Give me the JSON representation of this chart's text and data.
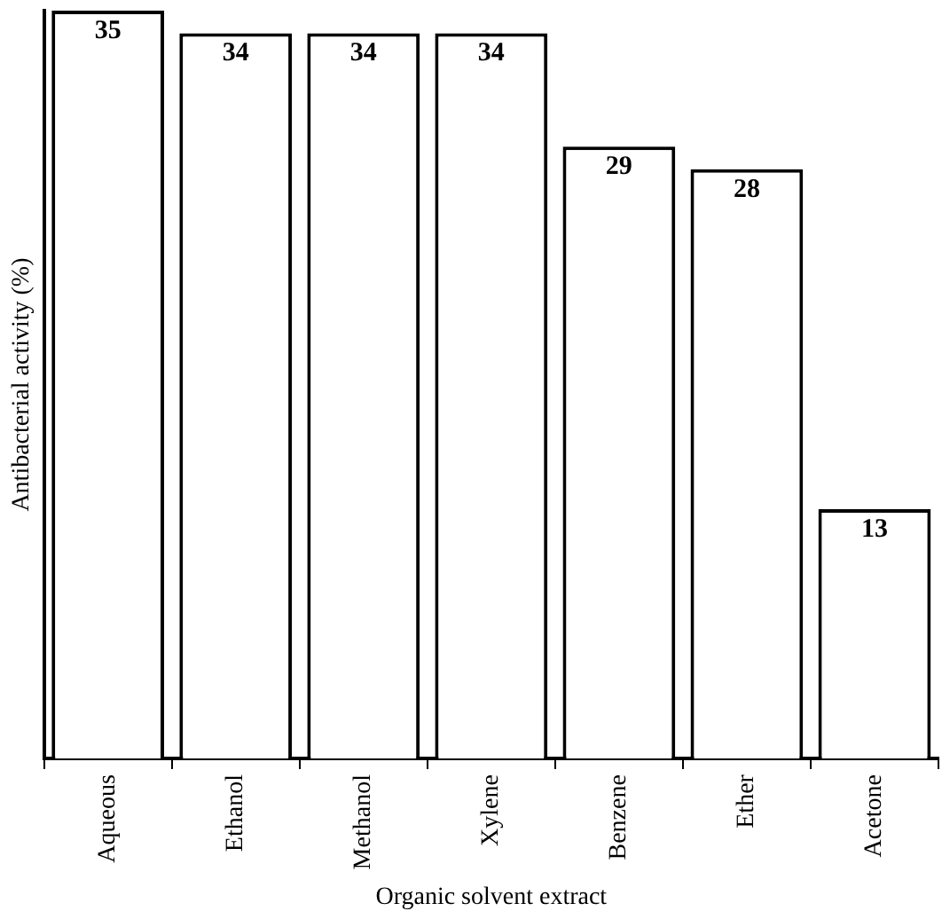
{
  "chart_data": {
    "type": "bar",
    "xlabel": "Organic solvent extract",
    "ylabel": "Antibacterial activity (%)",
    "categories": [
      "Aqueous",
      "Ethanol",
      "Methanol",
      "Xylene",
      "Benzene",
      "Ether",
      "Acetone"
    ],
    "values": [
      35,
      34,
      34,
      34,
      29,
      28,
      13
    ],
    "color": "#ffffff",
    "ylim": [
      2,
      35
    ],
    "data_labels": true,
    "tick_labels": "x",
    "grid": false,
    "legend": false
  }
}
